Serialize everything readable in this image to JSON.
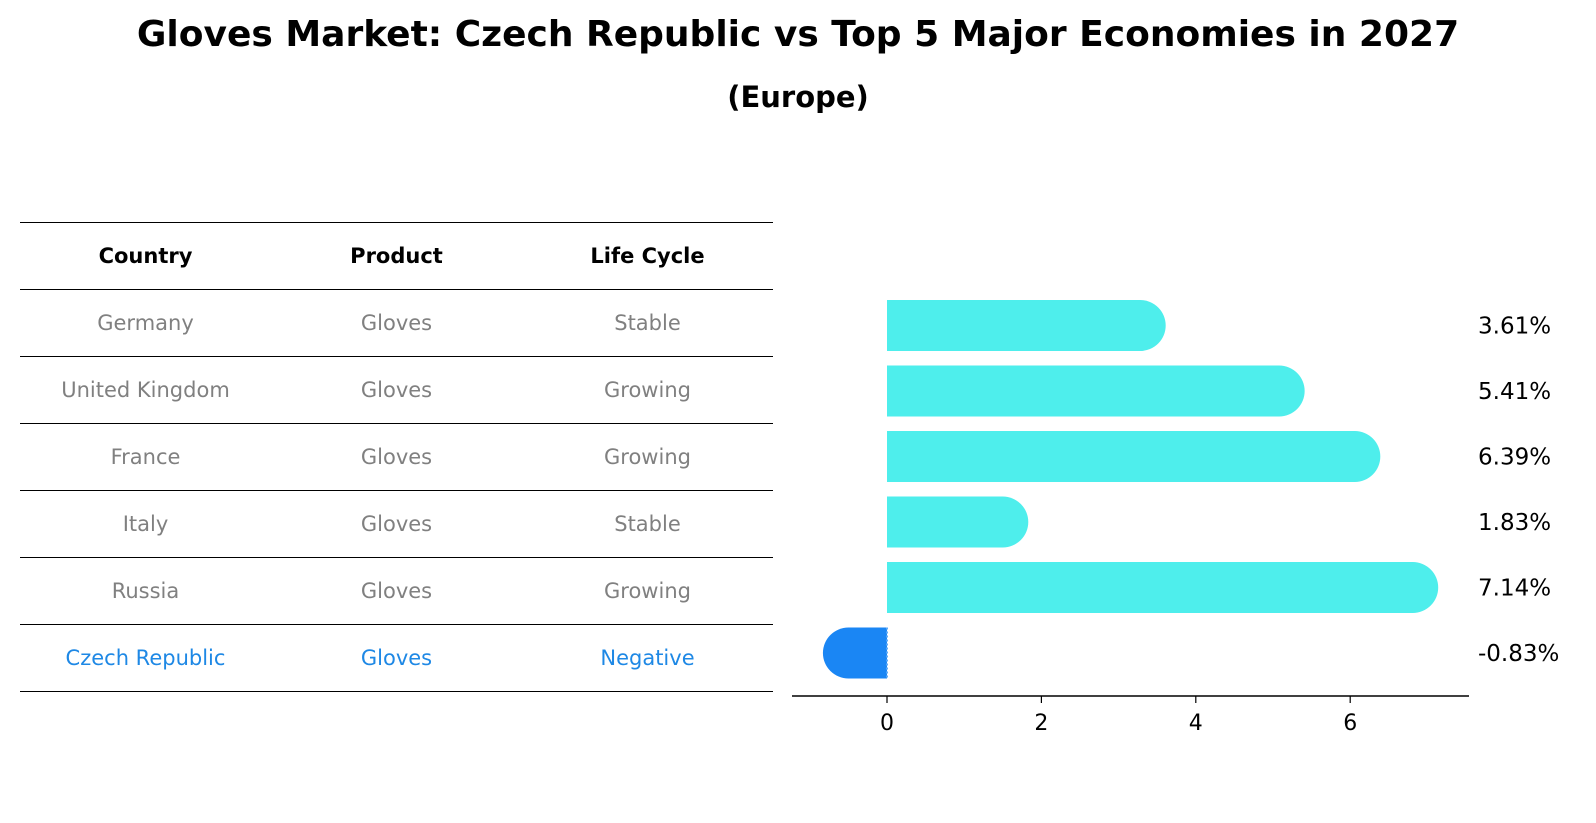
{
  "title": "Gloves Market: Czech Republic vs Top 5 Major Economies in 2027",
  "subtitle": "(Europe)",
  "table": {
    "headers": [
      "Country",
      "Product",
      "Life Cycle"
    ],
    "rows": [
      {
        "country": "Germany",
        "product": "Gloves",
        "life_cycle": "Stable"
      },
      {
        "country": "United Kingdom",
        "product": "Gloves",
        "life_cycle": "Growing"
      },
      {
        "country": "France",
        "product": "Gloves",
        "life_cycle": "Growing"
      },
      {
        "country": "Italy",
        "product": "Gloves",
        "life_cycle": "Stable"
      },
      {
        "country": "Russia",
        "product": "Gloves",
        "life_cycle": "Growing"
      },
      {
        "country": "Czech Republic",
        "product": "Gloves",
        "life_cycle": "Negative"
      }
    ],
    "highlight_color": "#1e88e5",
    "text_color": "#808080"
  },
  "chart_data": {
    "type": "bar",
    "orientation": "horizontal",
    "categories": [
      "Germany",
      "United Kingdom",
      "France",
      "Italy",
      "Russia",
      "Czech Republic"
    ],
    "values": [
      3.61,
      5.41,
      6.39,
      1.83,
      7.14,
      -0.83
    ],
    "value_labels": [
      "3.61%",
      "5.41%",
      "6.39%",
      "1.83%",
      "7.14%",
      "-0.83%"
    ],
    "xticks": [
      0,
      2,
      4,
      6
    ],
    "xlim": [
      -1.23,
      7.5
    ],
    "colors": {
      "positive": "#4eeeec",
      "negative": "#1a86f4"
    },
    "grid": false
  }
}
